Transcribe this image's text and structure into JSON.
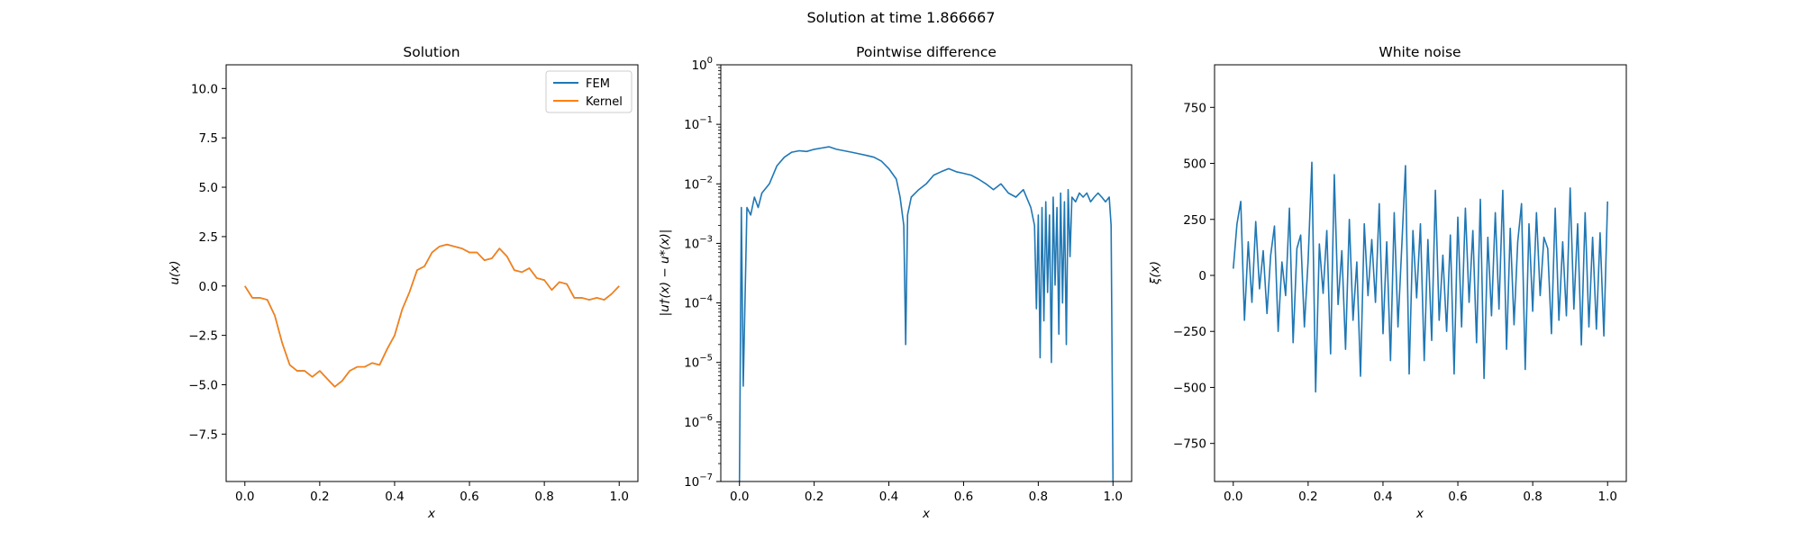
{
  "figure": {
    "suptitle": "Solution at time 1.866667"
  },
  "colors": {
    "fem": "#1f77b4",
    "kernel": "#ff7f0e",
    "noise": "#1f77b4",
    "diff": "#1f77b4"
  },
  "chart_data": [
    {
      "type": "line",
      "title": "Solution",
      "xlabel": "x",
      "ylabel": "u(x)",
      "xlim": [
        -0.05,
        1.05
      ],
      "ylim": [
        -9.9,
        11.2
      ],
      "xticks": [
        0.0,
        0.2,
        0.4,
        0.6,
        0.8,
        1.0
      ],
      "xtick_labels": [
        "0.0",
        "0.2",
        "0.4",
        "0.6",
        "0.8",
        "1.0"
      ],
      "yticks": [
        10.0,
        7.5,
        5.0,
        2.5,
        0.0,
        -2.5,
        -5.0,
        -7.5
      ],
      "ytick_labels": [
        "10.0",
        "7.5",
        "5.0",
        "2.5",
        "0.0",
        "−2.5",
        "−5.0",
        "−7.5"
      ],
      "legend": {
        "placement": "upper right",
        "entries": [
          "FEM",
          "Kernel"
        ]
      },
      "x": [
        0.0,
        0.02,
        0.04,
        0.06,
        0.08,
        0.1,
        0.12,
        0.14,
        0.16,
        0.18,
        0.2,
        0.22,
        0.24,
        0.26,
        0.28,
        0.3,
        0.32,
        0.34,
        0.36,
        0.38,
        0.4,
        0.42,
        0.44,
        0.46,
        0.48,
        0.5,
        0.52,
        0.54,
        0.56,
        0.58,
        0.6,
        0.62,
        0.64,
        0.66,
        0.68,
        0.7,
        0.72,
        0.74,
        0.76,
        0.78,
        0.8,
        0.82,
        0.84,
        0.86,
        0.88,
        0.9,
        0.92,
        0.94,
        0.96,
        0.98,
        1.0
      ],
      "series": [
        {
          "name": "FEM",
          "values": [
            0.0,
            -0.6,
            -0.6,
            -0.7,
            -1.5,
            -2.9,
            -4.0,
            -4.3,
            -4.3,
            -4.6,
            -4.3,
            -4.7,
            -5.1,
            -4.8,
            -4.3,
            -4.1,
            -4.1,
            -3.9,
            -4.0,
            -3.2,
            -2.5,
            -1.2,
            -0.3,
            0.8,
            1.0,
            1.7,
            2.0,
            2.1,
            2.0,
            1.9,
            1.7,
            1.7,
            1.3,
            1.4,
            1.9,
            1.5,
            0.8,
            0.7,
            0.9,
            0.4,
            0.3,
            -0.2,
            0.2,
            0.1,
            -0.6,
            -0.6,
            -0.7,
            -0.6,
            -0.7,
            -0.4,
            0.0
          ]
        },
        {
          "name": "Kernel",
          "values": [
            0.0,
            -0.6,
            -0.6,
            -0.7,
            -1.5,
            -2.9,
            -4.0,
            -4.3,
            -4.3,
            -4.6,
            -4.3,
            -4.7,
            -5.1,
            -4.8,
            -4.3,
            -4.1,
            -4.1,
            -3.9,
            -4.0,
            -3.2,
            -2.5,
            -1.2,
            -0.3,
            0.8,
            1.0,
            1.7,
            2.0,
            2.1,
            2.0,
            1.9,
            1.7,
            1.7,
            1.3,
            1.4,
            1.9,
            1.5,
            0.8,
            0.7,
            0.9,
            0.4,
            0.3,
            -0.2,
            0.2,
            0.1,
            -0.6,
            -0.6,
            -0.7,
            -0.6,
            -0.7,
            -0.4,
            0.0
          ]
        }
      ]
    },
    {
      "type": "line",
      "title": "Pointwise difference",
      "xlabel": "x",
      "ylabel": "|u†(x) − u*(x)|",
      "yscale": "log",
      "xlim": [
        -0.05,
        1.05
      ],
      "ylim": [
        1e-07,
        1
      ],
      "xticks": [
        0.0,
        0.2,
        0.4,
        0.6,
        0.8,
        1.0
      ],
      "xtick_labels": [
        "0.0",
        "0.2",
        "0.4",
        "0.6",
        "0.8",
        "1.0"
      ],
      "yticks": [
        1,
        0.1,
        0.01,
        0.001,
        0.0001,
        1e-05,
        1e-06,
        1e-07
      ],
      "ytick_labels": [
        [
          "10",
          "0"
        ],
        [
          "10",
          "−1"
        ],
        [
          "10",
          "−2"
        ],
        [
          "10",
          "−3"
        ],
        [
          "10",
          "−4"
        ],
        [
          "10",
          "−5"
        ],
        [
          "10",
          "−6"
        ],
        [
          "10",
          "−7"
        ]
      ],
      "x": [
        0.0,
        0.005,
        0.01,
        0.02,
        0.03,
        0.04,
        0.05,
        0.06,
        0.08,
        0.1,
        0.12,
        0.14,
        0.16,
        0.18,
        0.2,
        0.22,
        0.24,
        0.26,
        0.28,
        0.3,
        0.32,
        0.34,
        0.36,
        0.38,
        0.4,
        0.42,
        0.43,
        0.44,
        0.445,
        0.45,
        0.46,
        0.48,
        0.5,
        0.52,
        0.54,
        0.56,
        0.58,
        0.6,
        0.62,
        0.64,
        0.66,
        0.68,
        0.7,
        0.72,
        0.74,
        0.76,
        0.78,
        0.79,
        0.795,
        0.8,
        0.805,
        0.81,
        0.815,
        0.82,
        0.825,
        0.83,
        0.835,
        0.84,
        0.845,
        0.85,
        0.855,
        0.86,
        0.865,
        0.87,
        0.875,
        0.88,
        0.885,
        0.89,
        0.9,
        0.91,
        0.92,
        0.93,
        0.94,
        0.95,
        0.96,
        0.97,
        0.98,
        0.99,
        0.995,
        1.0
      ],
      "series": [
        {
          "name": "",
          "values": [
            1e-07,
            0.004,
            4e-06,
            0.004,
            0.003,
            0.006,
            0.004,
            0.007,
            0.01,
            0.02,
            0.028,
            0.034,
            0.036,
            0.035,
            0.038,
            0.04,
            0.042,
            0.038,
            0.036,
            0.034,
            0.032,
            0.03,
            0.028,
            0.024,
            0.018,
            0.012,
            0.006,
            0.002,
            2e-05,
            0.003,
            0.006,
            0.008,
            0.01,
            0.014,
            0.016,
            0.018,
            0.016,
            0.015,
            0.014,
            0.012,
            0.01,
            0.008,
            0.01,
            0.007,
            0.006,
            0.008,
            0.004,
            0.002,
            8e-05,
            0.003,
            1.2e-05,
            0.004,
            5e-05,
            0.005,
            0.00015,
            0.003,
            1e-05,
            0.006,
            0.0002,
            0.004,
            3e-05,
            0.007,
            0.0001,
            0.005,
            2e-05,
            0.008,
            0.0006,
            0.006,
            0.005,
            0.007,
            0.006,
            0.007,
            0.005,
            0.006,
            0.007,
            0.006,
            0.005,
            0.006,
            0.002,
            1e-07
          ]
        }
      ]
    },
    {
      "type": "line",
      "title": "White noise",
      "xlabel": "x",
      "ylabel": "ξ(x)",
      "xlim": [
        -0.05,
        1.05
      ],
      "ylim": [
        -920,
        940
      ],
      "xticks": [
        0.0,
        0.2,
        0.4,
        0.6,
        0.8,
        1.0
      ],
      "xtick_labels": [
        "0.0",
        "0.2",
        "0.4",
        "0.6",
        "0.8",
        "1.0"
      ],
      "yticks": [
        750,
        500,
        250,
        0,
        -250,
        -500,
        -750
      ],
      "ytick_labels": [
        "750",
        "500",
        "250",
        "0",
        "−250",
        "−500",
        "−750"
      ],
      "x": [
        0.0,
        0.01,
        0.02,
        0.03,
        0.04,
        0.05,
        0.06,
        0.07,
        0.08,
        0.09,
        0.1,
        0.11,
        0.12,
        0.13,
        0.14,
        0.15,
        0.16,
        0.17,
        0.18,
        0.19,
        0.2,
        0.21,
        0.22,
        0.23,
        0.24,
        0.25,
        0.26,
        0.27,
        0.28,
        0.29,
        0.3,
        0.31,
        0.32,
        0.33,
        0.34,
        0.35,
        0.36,
        0.37,
        0.38,
        0.39,
        0.4,
        0.41,
        0.42,
        0.43,
        0.44,
        0.45,
        0.46,
        0.47,
        0.48,
        0.49,
        0.5,
        0.51,
        0.52,
        0.53,
        0.54,
        0.55,
        0.56,
        0.57,
        0.58,
        0.59,
        0.6,
        0.61,
        0.62,
        0.63,
        0.64,
        0.65,
        0.66,
        0.67,
        0.68,
        0.69,
        0.7,
        0.71,
        0.72,
        0.73,
        0.74,
        0.75,
        0.76,
        0.77,
        0.78,
        0.79,
        0.8,
        0.81,
        0.82,
        0.83,
        0.84,
        0.85,
        0.86,
        0.87,
        0.88,
        0.89,
        0.9,
        0.91,
        0.92,
        0.93,
        0.94,
        0.95,
        0.96,
        0.97,
        0.98,
        0.99,
        1.0
      ],
      "series": [
        {
          "name": "",
          "values": [
            30,
            230,
            330,
            -200,
            150,
            -120,
            240,
            -60,
            110,
            -170,
            90,
            220,
            -250,
            60,
            -90,
            300,
            -300,
            120,
            180,
            -230,
            70,
            505,
            -520,
            140,
            -80,
            200,
            -350,
            450,
            -130,
            110,
            -330,
            250,
            -200,
            60,
            -450,
            230,
            -90,
            160,
            -120,
            320,
            -260,
            150,
            -380,
            280,
            -230,
            120,
            490,
            -440,
            200,
            -100,
            230,
            -380,
            160,
            -290,
            380,
            -200,
            90,
            -250,
            180,
            -440,
            260,
            -230,
            300,
            -120,
            200,
            -300,
            340,
            -460,
            170,
            -180,
            280,
            -150,
            380,
            -330,
            210,
            -220,
            150,
            320,
            -420,
            230,
            -160,
            280,
            -90,
            170,
            120,
            -260,
            300,
            -200,
            150,
            -180,
            390,
            -150,
            230,
            -310,
            280,
            -230,
            170,
            -240,
            190,
            -270,
            330
          ]
        }
      ]
    }
  ]
}
